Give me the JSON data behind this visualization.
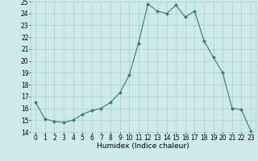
{
  "x": [
    0,
    1,
    2,
    3,
    4,
    5,
    6,
    7,
    8,
    9,
    10,
    11,
    12,
    13,
    14,
    15,
    16,
    17,
    18,
    19,
    20,
    21,
    22,
    23
  ],
  "y": [
    16.5,
    15.1,
    14.9,
    14.8,
    15.0,
    15.5,
    15.8,
    16.0,
    16.5,
    17.3,
    18.8,
    21.5,
    24.8,
    24.2,
    24.0,
    24.7,
    23.7,
    24.2,
    21.7,
    20.3,
    19.0,
    16.0,
    15.9,
    14.1
  ],
  "line_color": "#2e7d6e",
  "marker": "D",
  "marker_size": 2.0,
  "bg_color": "#ceeae7",
  "grid_color": "#aacfcb",
  "xlabel": "Humidex (Indice chaleur)",
  "xlim": [
    -0.5,
    23.5
  ],
  "ylim": [
    14,
    25
  ],
  "yticks": [
    14,
    15,
    16,
    17,
    18,
    19,
    20,
    21,
    22,
    23,
    24,
    25
  ],
  "xticks": [
    0,
    1,
    2,
    3,
    4,
    5,
    6,
    7,
    8,
    9,
    10,
    11,
    12,
    13,
    14,
    15,
    16,
    17,
    18,
    19,
    20,
    21,
    22,
    23
  ],
  "xlabel_fontsize": 6.5,
  "tick_fontsize": 5.5
}
